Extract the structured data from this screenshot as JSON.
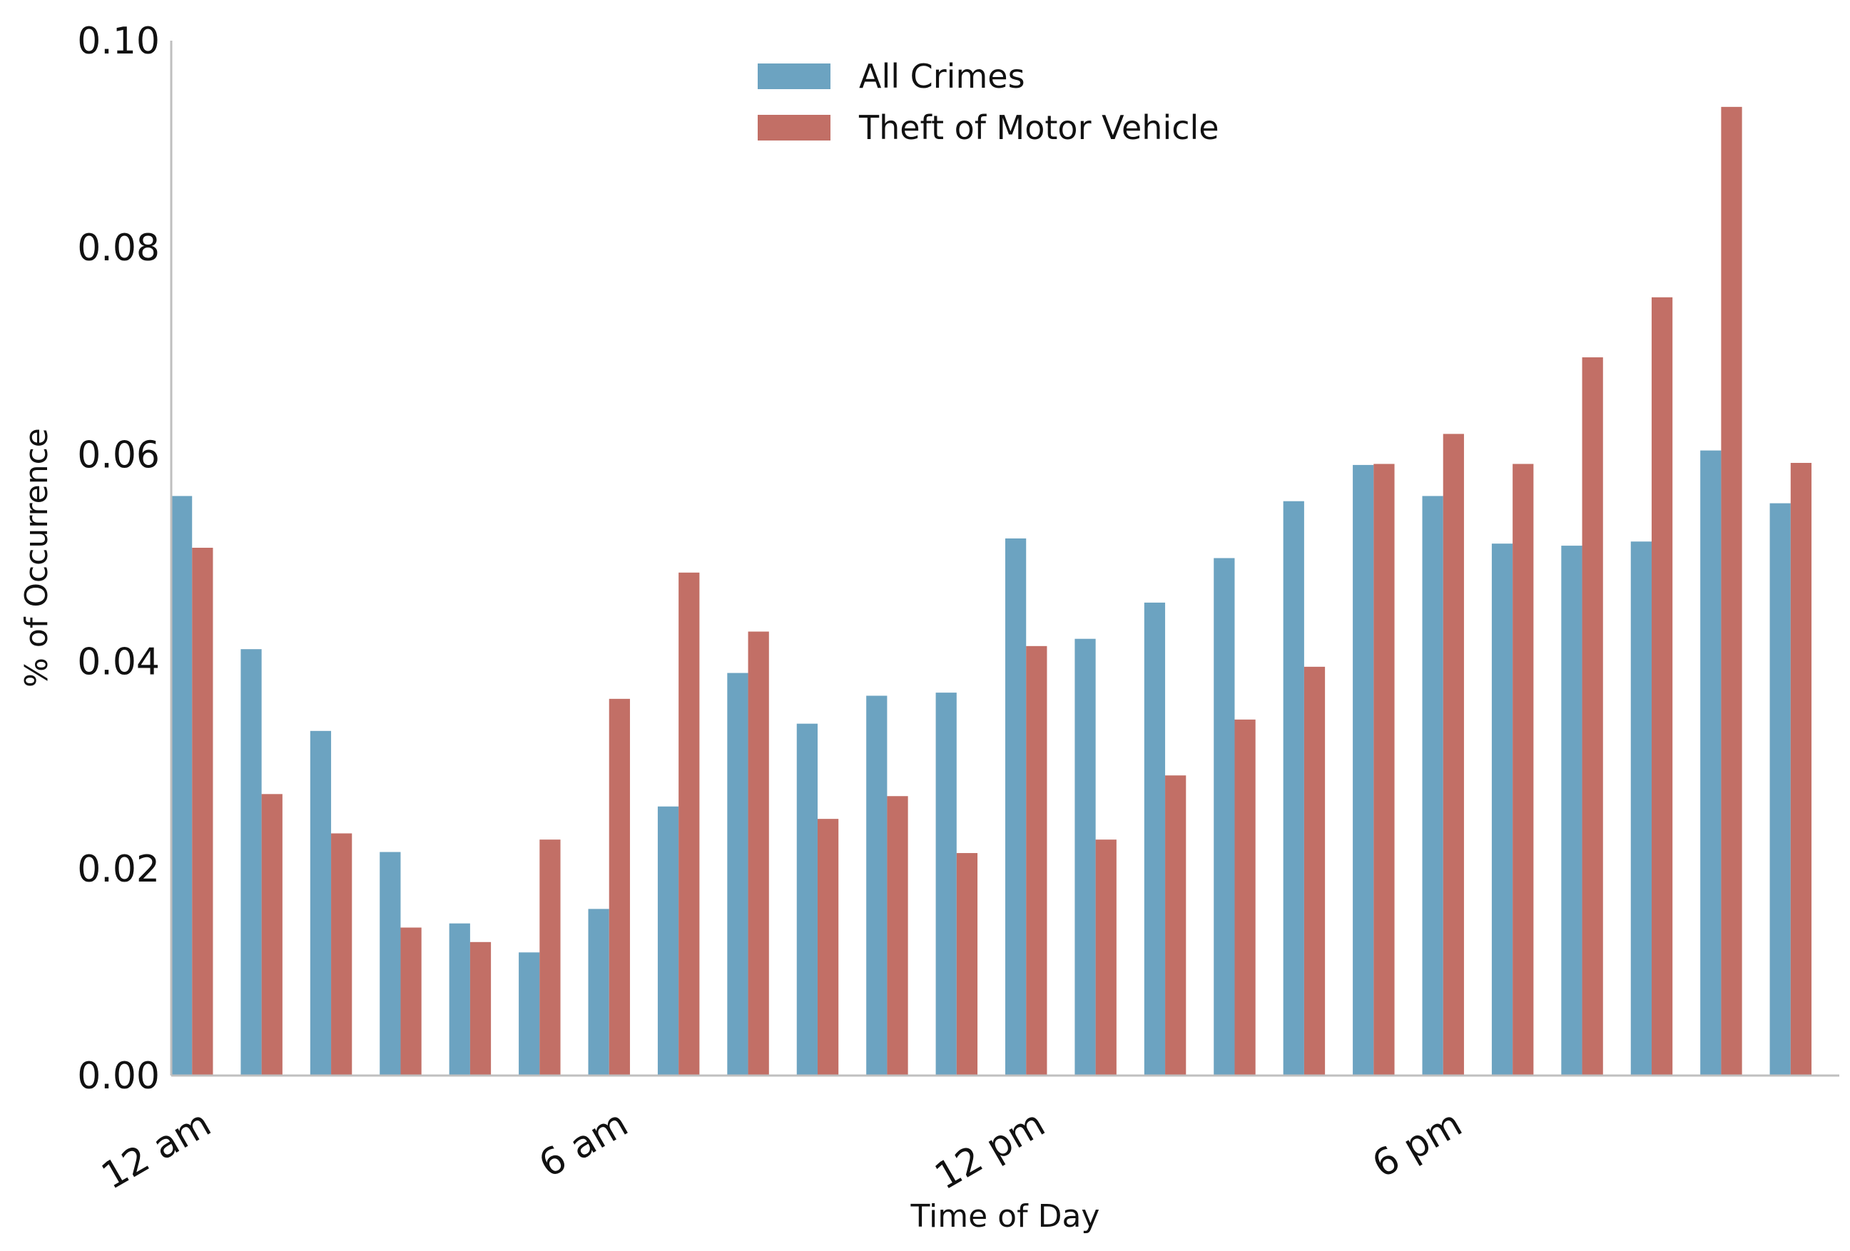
{
  "chart_data": {
    "type": "bar",
    "xlabel": "Time of Day",
    "ylabel": "% of Occurrence",
    "ylim": [
      0,
      0.1
    ],
    "yticks": [
      "0.00",
      "0.02",
      "0.04",
      "0.06",
      "0.08",
      "0.10"
    ],
    "ytick_values": [
      0,
      0.02,
      0.04,
      0.06,
      0.08,
      0.1
    ],
    "xtick_labels": [
      "12 am",
      "6 am",
      "12 pm",
      "6 pm"
    ],
    "xtick_hours": [
      0,
      6,
      12,
      18
    ],
    "categories": [
      0,
      1,
      2,
      3,
      4,
      5,
      6,
      7,
      8,
      9,
      10,
      11,
      12,
      13,
      14,
      15,
      16,
      17,
      18,
      19,
      20,
      21,
      22,
      23
    ],
    "series": [
      {
        "name": "All Crimes",
        "color": "#6ca3c1",
        "values": [
          0.056,
          0.0412,
          0.0333,
          0.0216,
          0.0147,
          0.0119,
          0.0161,
          0.026,
          0.0389,
          0.034,
          0.0367,
          0.037,
          0.0519,
          0.0422,
          0.0457,
          0.05,
          0.0555,
          0.059,
          0.056,
          0.0514,
          0.0512,
          0.0516,
          0.0604,
          0.0553
        ]
      },
      {
        "name": "Theft of Motor Vehicle",
        "color": "#c26f66",
        "values": [
          0.051,
          0.0272,
          0.0234,
          0.0143,
          0.0129,
          0.0228,
          0.0364,
          0.0486,
          0.0429,
          0.0248,
          0.027,
          0.0215,
          0.0415,
          0.0228,
          0.029,
          0.0344,
          0.0395,
          0.0591,
          0.062,
          0.0591,
          0.0694,
          0.0752,
          0.0936,
          0.0592
        ]
      }
    ],
    "legend_position": "top-center",
    "grid": false
  }
}
